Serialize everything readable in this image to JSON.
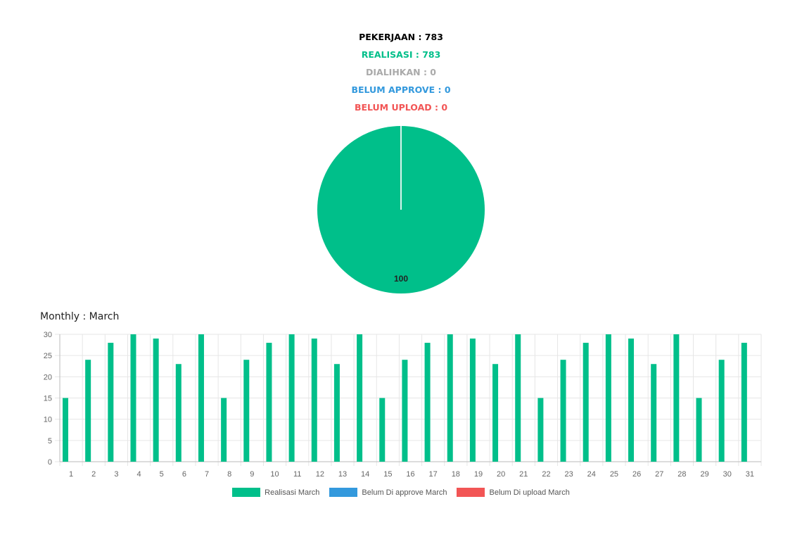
{
  "summary": {
    "pekerjaan": "PEKERJAAN : 783",
    "realisasi": "REALISASI : 783",
    "dialihkan": "DIALIHKAN : 0",
    "belum_approve": "BELUM APPROVE : 0",
    "belum_upload": "BELUM UPLOAD : 0"
  },
  "colors": {
    "pekerjaan": "#000000",
    "realisasi": "#00bf8a",
    "dialihkan": "#aaaaaa",
    "belum_approve": "#3399dd",
    "belum_upload": "#f25555"
  },
  "monthly_title": "Monthly : March",
  "chart_data": [
    {
      "type": "pie",
      "slices": [
        {
          "value": 100,
          "color": "#00bf8a"
        },
        {
          "value": 0,
          "color": "#3399dd"
        },
        {
          "value": 0,
          "color": "#f25555"
        }
      ],
      "data_labels": [
        "100"
      ]
    },
    {
      "type": "bar",
      "title": "Monthly : March",
      "categories": [
        "1",
        "2",
        "3",
        "4",
        "5",
        "6",
        "7",
        "8",
        "9",
        "10",
        "11",
        "12",
        "13",
        "14",
        "15",
        "16",
        "17",
        "18",
        "19",
        "20",
        "21",
        "22",
        "23",
        "24",
        "25",
        "26",
        "27",
        "28",
        "29",
        "30",
        "31"
      ],
      "series": [
        {
          "name": "Realisasi March",
          "color": "#00bf8a",
          "values": [
            15,
            24,
            28,
            30,
            29,
            23,
            30,
            15,
            24,
            28,
            30,
            29,
            23,
            30,
            15,
            24,
            28,
            30,
            29,
            23,
            30,
            15,
            24,
            28,
            30,
            29,
            23,
            30,
            15,
            24,
            28
          ]
        },
        {
          "name": "Belum Di approve March",
          "color": "#3399dd",
          "values": [
            0,
            0,
            0,
            0,
            0,
            0,
            0,
            0,
            0,
            0,
            0,
            0,
            0,
            0,
            0,
            0,
            0,
            0,
            0,
            0,
            0,
            0,
            0,
            0,
            0,
            0,
            0,
            0,
            0,
            0,
            0
          ]
        },
        {
          "name": "Belum Di upload March",
          "color": "#f25555",
          "values": [
            0,
            0,
            0,
            0,
            0,
            0,
            0,
            0,
            0,
            0,
            0,
            0,
            0,
            0,
            0,
            0,
            0,
            0,
            0,
            0,
            0,
            0,
            0,
            0,
            0,
            0,
            0,
            0,
            0,
            0,
            0
          ]
        }
      ],
      "yticks": [
        "0",
        "5",
        "10",
        "15",
        "20",
        "25",
        "30"
      ],
      "ylim": [
        0,
        30
      ],
      "grid": true,
      "legend_position": "bottom"
    }
  ]
}
